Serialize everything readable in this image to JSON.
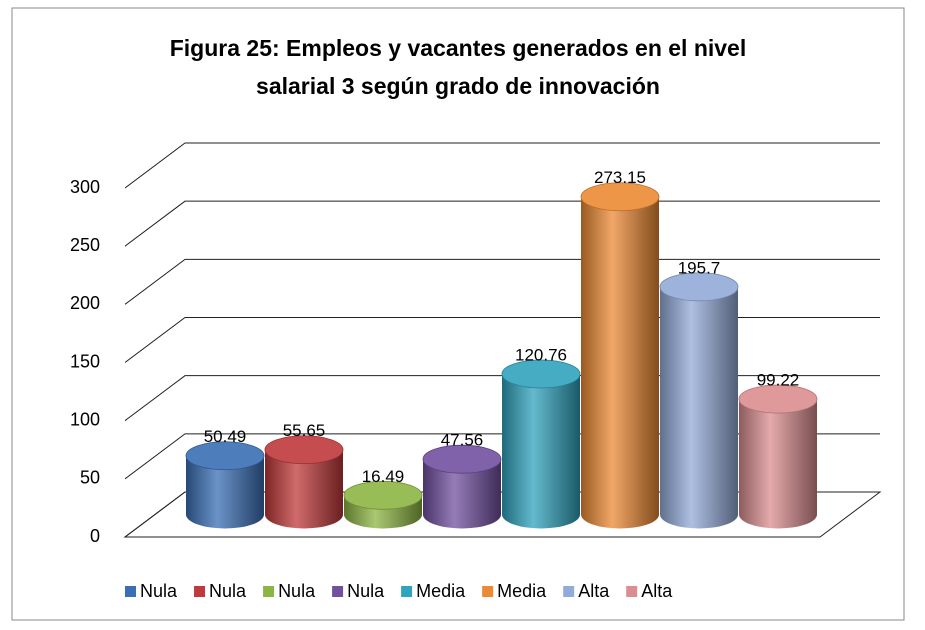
{
  "chart_data": {
    "type": "bar",
    "title": [
      "Figura 25: Empleos y vacantes generados en el nivel",
      "salarial 3 según grado de innovación"
    ],
    "categories": [
      null
    ],
    "series": [
      {
        "name": "Nula",
        "color": "#3a6fb5",
        "values": [
          50.49
        ]
      },
      {
        "name": "Nula",
        "color": "#c0393b",
        "values": [
          55.65
        ]
      },
      {
        "name": "Nula",
        "color": "#8db543",
        "values": [
          16.49
        ]
      },
      {
        "name": "Nula",
        "color": "#7250a0",
        "values": [
          47.56
        ]
      },
      {
        "name": "Media",
        "color": "#30a3bd",
        "values": [
          120.76
        ]
      },
      {
        "name": "Media",
        "color": "#ec8a34",
        "values": [
          273.15
        ]
      },
      {
        "name": "Alta",
        "color": "#93abd8",
        "values": [
          195.7
        ]
      },
      {
        "name": "Alta",
        "color": "#db8e90",
        "values": [
          99.22
        ]
      }
    ],
    "ylim": [
      0,
      300
    ],
    "yticks": [
      0,
      50,
      100,
      150,
      200,
      250,
      300
    ],
    "grid": true,
    "legend": "bottom"
  }
}
